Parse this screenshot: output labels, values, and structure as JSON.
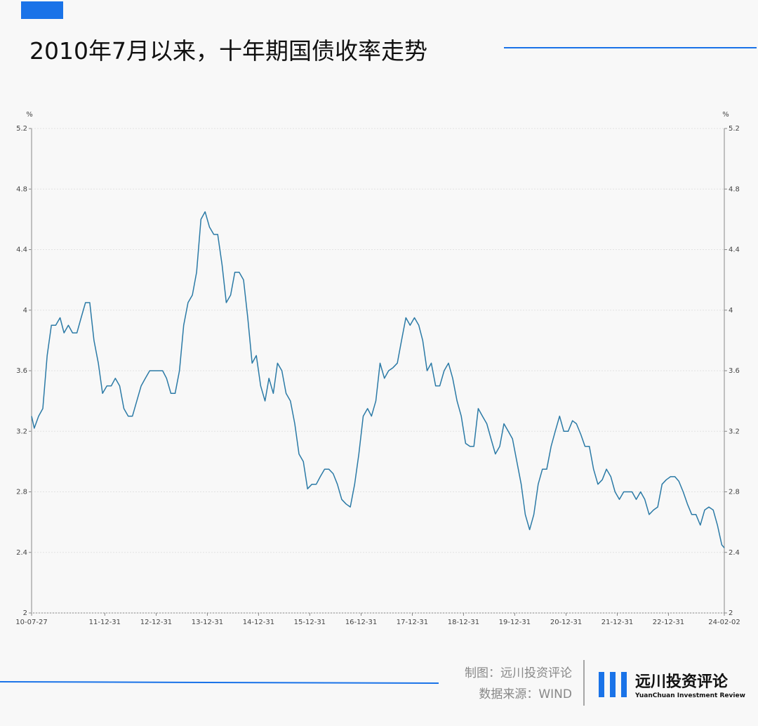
{
  "chart_data": {
    "type": "line",
    "title": "2010年7月以来，十年期国债收率走势",
    "y_unit": "%",
    "y2_unit": "%",
    "color": "#2b7aa6",
    "x": [
      "10-07-27",
      "10-08-15",
      "10-09-15",
      "10-10-15",
      "10-11-15",
      "10-12-15",
      "11-01-15",
      "11-02-15",
      "11-03-15",
      "11-04-15",
      "11-05-15",
      "11-06-15",
      "11-07-15",
      "11-08-15",
      "11-09-15",
      "11-10-15",
      "11-11-15",
      "11-12-15",
      "12-01-15",
      "12-02-15",
      "12-03-15",
      "12-04-15",
      "12-05-15",
      "12-06-15",
      "12-07-15",
      "12-08-15",
      "12-09-15",
      "12-10-15",
      "12-11-15",
      "12-12-15",
      "13-01-15",
      "13-02-15",
      "13-03-15",
      "13-04-15",
      "13-05-15",
      "13-06-15",
      "13-07-15",
      "13-08-15",
      "13-09-15",
      "13-10-15",
      "13-11-15",
      "13-12-15",
      "14-01-15",
      "14-02-15",
      "14-03-15",
      "14-04-15",
      "14-05-15",
      "14-06-15",
      "14-07-15",
      "14-08-15",
      "14-09-15",
      "14-10-15",
      "14-11-15",
      "14-12-15",
      "15-01-15",
      "15-02-15",
      "15-03-15",
      "15-04-15",
      "15-05-15",
      "15-06-15",
      "15-07-15",
      "15-08-15",
      "15-09-15",
      "15-10-15",
      "15-11-15",
      "15-12-15",
      "16-01-15",
      "16-02-15",
      "16-03-15",
      "16-04-15",
      "16-05-15",
      "16-06-15",
      "16-07-15",
      "16-08-15",
      "16-09-15",
      "16-10-15",
      "16-11-15",
      "16-12-15",
      "17-01-15",
      "17-02-15",
      "17-03-15",
      "17-04-15",
      "17-05-15",
      "17-06-15",
      "17-07-15",
      "17-08-15",
      "17-09-15",
      "17-10-15",
      "17-11-15",
      "17-12-15",
      "18-01-15",
      "18-02-15",
      "18-03-15",
      "18-04-15",
      "18-05-15",
      "18-06-15",
      "18-07-15",
      "18-08-15",
      "18-09-15",
      "18-10-15",
      "18-11-15",
      "18-12-15",
      "19-01-15",
      "19-02-15",
      "19-03-15",
      "19-04-15",
      "19-05-15",
      "19-06-15",
      "19-07-15",
      "19-08-15",
      "19-09-15",
      "19-10-15",
      "19-11-15",
      "19-12-15",
      "20-01-15",
      "20-02-15",
      "20-03-15",
      "20-04-15",
      "20-05-15",
      "20-06-15",
      "20-07-15",
      "20-08-15",
      "20-09-15",
      "20-10-15",
      "20-11-15",
      "20-12-15",
      "21-01-15",
      "21-02-15",
      "21-03-15",
      "21-04-15",
      "21-05-15",
      "21-06-15",
      "21-07-15",
      "21-08-15",
      "21-09-15",
      "21-10-15",
      "21-11-15",
      "21-12-15",
      "22-01-15",
      "22-02-15",
      "22-03-15",
      "22-04-15",
      "22-05-15",
      "22-06-15",
      "22-07-15",
      "22-08-15",
      "22-09-15",
      "22-10-15",
      "22-11-15",
      "22-12-15",
      "23-01-15",
      "23-02-15",
      "23-03-15",
      "23-04-15",
      "23-05-15",
      "23-06-15",
      "23-07-15",
      "23-08-15",
      "23-09-15",
      "23-10-15",
      "23-11-15",
      "23-12-15",
      "24-01-15",
      "24-02-02"
    ],
    "values": [
      3.3,
      3.22,
      3.3,
      3.35,
      3.7,
      3.9,
      3.9,
      3.95,
      3.85,
      3.9,
      3.85,
      3.85,
      3.95,
      4.05,
      4.05,
      3.8,
      3.65,
      3.45,
      3.5,
      3.5,
      3.55,
      3.5,
      3.35,
      3.3,
      3.3,
      3.4,
      3.5,
      3.55,
      3.6,
      3.6,
      3.6,
      3.6,
      3.55,
      3.45,
      3.45,
      3.6,
      3.9,
      4.05,
      4.1,
      4.25,
      4.6,
      4.65,
      4.55,
      4.5,
      4.5,
      4.3,
      4.05,
      4.1,
      4.25,
      4.25,
      4.2,
      3.95,
      3.65,
      3.7,
      3.5,
      3.4,
      3.55,
      3.45,
      3.65,
      3.6,
      3.45,
      3.4,
      3.25,
      3.05,
      3.0,
      2.82,
      2.85,
      2.85,
      2.9,
      2.95,
      2.95,
      2.92,
      2.85,
      2.75,
      2.72,
      2.7,
      2.85,
      3.05,
      3.3,
      3.35,
      3.3,
      3.4,
      3.65,
      3.55,
      3.6,
      3.62,
      3.65,
      3.8,
      3.95,
      3.9,
      3.95,
      3.9,
      3.8,
      3.6,
      3.65,
      3.5,
      3.5,
      3.6,
      3.65,
      3.55,
      3.4,
      3.3,
      3.12,
      3.1,
      3.1,
      3.35,
      3.3,
      3.25,
      3.15,
      3.05,
      3.1,
      3.25,
      3.2,
      3.15,
      3.0,
      2.85,
      2.65,
      2.55,
      2.65,
      2.85,
      2.95,
      2.95,
      3.1,
      3.2,
      3.3,
      3.2,
      3.2,
      3.27,
      3.25,
      3.18,
      3.1,
      3.1,
      2.95,
      2.85,
      2.88,
      2.95,
      2.9,
      2.8,
      2.75,
      2.8,
      2.8,
      2.8,
      2.75,
      2.8,
      2.75,
      2.65,
      2.68,
      2.7,
      2.85,
      2.88,
      2.9,
      2.9,
      2.87,
      2.8,
      2.72,
      2.65,
      2.65,
      2.58,
      2.68,
      2.7,
      2.68,
      2.58,
      2.45,
      2.43
    ],
    "xlim": [
      "10-07-27",
      "24-02-02"
    ],
    "xticks": [
      "10-07-27",
      "11-12-31",
      "12-12-31",
      "13-12-31",
      "14-12-31",
      "15-12-31",
      "16-12-31",
      "17-12-31",
      "18-12-31",
      "19-12-31",
      "20-12-31",
      "21-12-31",
      "22-12-31",
      "24-02-02"
    ],
    "ylim": [
      2,
      5.2
    ],
    "yticks": [
      2,
      2.4,
      2.8,
      3.2,
      3.6,
      4,
      4.4,
      4.8,
      5.2
    ],
    "y2lim": [
      2,
      5.2
    ],
    "y2ticks": [
      2,
      2.4,
      2.8,
      3.2,
      3.6,
      4,
      4.4,
      4.8,
      5.2
    ],
    "grid": true
  },
  "footer": {
    "credit": "制图：远川投资评论",
    "source": "数据来源：WIND",
    "logo_name": "远川投资评论",
    "logo_subtitle": "YuanChuan Investment Review"
  }
}
